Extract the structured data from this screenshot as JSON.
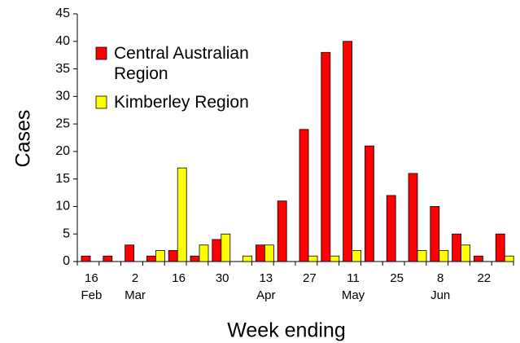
{
  "chart_data": {
    "type": "bar",
    "x_label": "Week ending",
    "y_label": "Cases",
    "categories": [
      "16",
      null,
      "2",
      null,
      "16",
      null,
      "30",
      null,
      "13",
      null,
      "27",
      null,
      "11",
      null,
      "25",
      null,
      "8",
      null,
      "22",
      null
    ],
    "category_sublabels": [
      "Feb",
      null,
      "Mar",
      null,
      null,
      null,
      null,
      null,
      "Apr",
      null,
      null,
      null,
      "May",
      null,
      null,
      null,
      "Jun",
      null,
      null,
      null
    ],
    "series": [
      {
        "name": "Central Australian Region",
        "color": "#ff0000",
        "values": [
          1,
          1,
          3,
          1,
          2,
          1,
          4,
          0,
          3,
          11,
          24,
          38,
          40,
          21,
          12,
          16,
          10,
          5,
          1,
          5
        ]
      },
      {
        "name": "Kimberley Region",
        "color": "#ffff00",
        "values": [
          0,
          0,
          0,
          2,
          17,
          3,
          5,
          1,
          3,
          0,
          1,
          1,
          2,
          0,
          0,
          2,
          2,
          3,
          0,
          1
        ]
      }
    ],
    "ylim": [
      0,
      45
    ],
    "yticks": [
      0,
      5,
      10,
      15,
      20,
      25,
      30,
      35,
      40,
      45
    ],
    "legend": "upper-left",
    "grid": false
  }
}
